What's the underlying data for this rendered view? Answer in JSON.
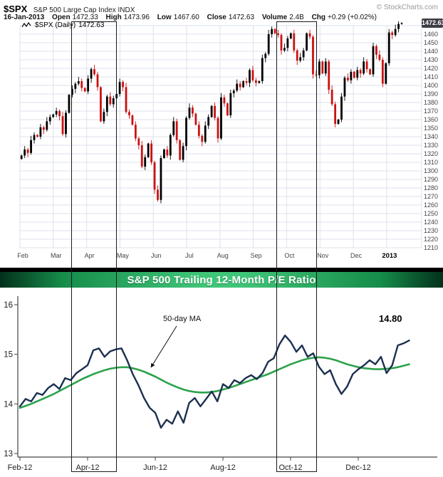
{
  "header": {
    "symbol": "$SPX",
    "name": "S&P 500 Large Cap Index INDX",
    "watermark": "© StockCharts.com",
    "date": "16-Jan-2013",
    "fields": [
      {
        "label": "Open",
        "value": "1472.33"
      },
      {
        "label": "High",
        "value": "1473.96"
      },
      {
        "label": "Low",
        "value": "1467.60"
      },
      {
        "label": "Close",
        "value": "1472.63"
      },
      {
        "label": "Volume",
        "value": "2.4B"
      },
      {
        "label": "Chg",
        "value": "+0.29 (+0.02%)"
      }
    ],
    "legend_label": "$SPX (Daily)",
    "legend_value": "1472.63",
    "last_price_label": "1472.63"
  },
  "banner": {
    "title": "S&P 500 Trailing 12-Month P/E Ratio"
  },
  "chart_data": [
    {
      "type": "candlestick",
      "symbol": "$SPX",
      "timeframe": "Daily",
      "x_labels": [
        "Feb",
        "Mar",
        "Apr",
        "May",
        "Jun",
        "Jul",
        "Aug",
        "Sep",
        "Oct",
        "Nov",
        "Dec",
        "2013"
      ],
      "y_axis": {
        "min": 1210,
        "max": 1470,
        "step": 10
      },
      "last_close": 1472.63,
      "closes": [
        1318,
        1325,
        1321,
        1336,
        1342,
        1340,
        1351,
        1348,
        1358,
        1363,
        1366,
        1370,
        1364,
        1343,
        1368,
        1389,
        1396,
        1402,
        1405,
        1397,
        1393,
        1408,
        1419,
        1413,
        1398,
        1358,
        1369,
        1387,
        1378,
        1385,
        1390,
        1404,
        1398,
        1369,
        1365,
        1354,
        1338,
        1330,
        1305,
        1316,
        1332,
        1310,
        1278,
        1266,
        1315,
        1325,
        1318,
        1342,
        1358,
        1336,
        1313,
        1329,
        1362,
        1374,
        1367,
        1354,
        1341,
        1334,
        1353,
        1363,
        1376,
        1362,
        1338,
        1386,
        1379,
        1365,
        1391,
        1394,
        1402,
        1398,
        1405,
        1403,
        1418,
        1406,
        1403,
        1405,
        1432,
        1437,
        1460,
        1466,
        1461,
        1459,
        1441,
        1444,
        1455,
        1461,
        1441,
        1429,
        1433,
        1441,
        1461,
        1457,
        1413,
        1412,
        1428,
        1414,
        1428,
        1395,
        1378,
        1355,
        1360,
        1387,
        1409,
        1406,
        1416,
        1409,
        1418,
        1414,
        1428,
        1419,
        1413,
        1446,
        1436,
        1430,
        1402,
        1426,
        1462,
        1459,
        1466,
        1472,
        1473
      ],
      "colors": {
        "up": "#000000",
        "down": "#cc1111",
        "grid": "#dde1ec"
      }
    },
    {
      "type": "line",
      "title": "S&P 500 Trailing 12-Month P/E Ratio",
      "x_labels": [
        "Feb-12",
        "Apr-12",
        "Jun-12",
        "Aug-12",
        "Oct-12",
        "Dec-12"
      ],
      "y_ticks": [
        16,
        15,
        14,
        13
      ],
      "ylim": [
        13,
        16
      ],
      "series": [
        {
          "name": "50-day MA",
          "color": "#2ca24c",
          "values": [
            13.92,
            13.96,
            14.0,
            14.05,
            14.1,
            14.15,
            14.2,
            14.26,
            14.32,
            14.38,
            14.44,
            14.5,
            14.55,
            14.6,
            14.64,
            14.68,
            14.71,
            14.73,
            14.74,
            14.74,
            14.72,
            14.69,
            14.65,
            14.6,
            14.55,
            14.49,
            14.43,
            14.38,
            14.33,
            14.29,
            14.26,
            14.24,
            14.23,
            14.23,
            14.24,
            14.26,
            14.29,
            14.32,
            14.36,
            14.4,
            14.44,
            14.48,
            14.52,
            14.56,
            14.6,
            14.65,
            14.7,
            14.75,
            14.8,
            14.84,
            14.88,
            14.91,
            14.93,
            14.94,
            14.93,
            14.91,
            14.88,
            14.84,
            14.8,
            14.77,
            14.74,
            14.72,
            14.71,
            14.7,
            14.7,
            14.71,
            14.72,
            14.74,
            14.77,
            14.8
          ]
        },
        {
          "name": "Trailing 12-Month P/E",
          "color": "#1c3050",
          "values": [
            13.95,
            14.1,
            14.05,
            14.22,
            14.18,
            14.32,
            14.4,
            14.3,
            14.52,
            14.48,
            14.62,
            14.7,
            14.78,
            15.08,
            15.12,
            14.95,
            15.06,
            15.1,
            15.12,
            14.88,
            14.6,
            14.38,
            14.12,
            13.92,
            13.82,
            13.52,
            13.68,
            13.6,
            13.85,
            13.62,
            14.02,
            14.12,
            13.95,
            14.1,
            14.25,
            14.05,
            14.4,
            14.32,
            14.48,
            14.42,
            14.52,
            14.58,
            14.5,
            14.62,
            14.85,
            14.92,
            15.2,
            15.38,
            15.25,
            15.05,
            15.18,
            14.95,
            15.02,
            14.75,
            14.6,
            14.68,
            14.4,
            14.2,
            14.35,
            14.6,
            14.7,
            14.78,
            14.88,
            14.8,
            14.95,
            14.62,
            14.78,
            15.18,
            15.22,
            15.28
          ]
        }
      ],
      "annotations": [
        {
          "text": "50-day MA",
          "type": "callout-arrow"
        },
        {
          "text": "14.80",
          "type": "value-label"
        }
      ]
    }
  ]
}
